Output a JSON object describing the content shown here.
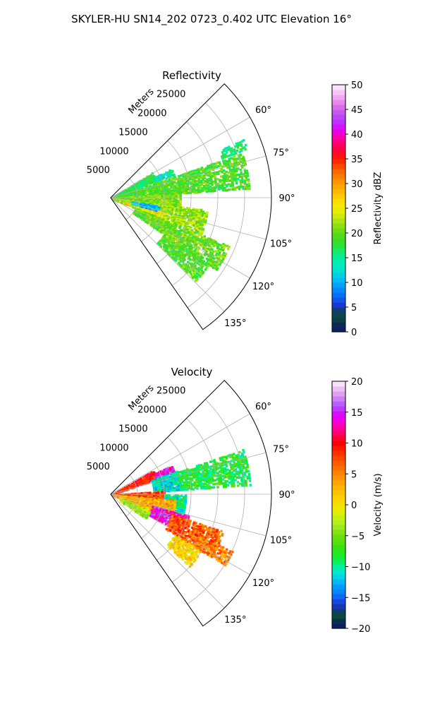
{
  "suptitle": "SKYLER-HU  SN14_202  0723_0.402 UTC Elevation 16°",
  "chart_data": [
    {
      "type": "polar-sector-radar",
      "title": "Reflectivity",
      "radial_axis_label": "Meters",
      "radial_ticks": [
        5000,
        10000,
        15000,
        20000,
        25000
      ],
      "radial_tick_labels": [
        "5000",
        "10000",
        "15000",
        "20000",
        "25000"
      ],
      "rmax": 30000,
      "theta_range_deg": [
        45,
        145
      ],
      "theta_direction": "clockwise-from-north",
      "theta_ticks": [
        60,
        75,
        90,
        105,
        120,
        135
      ],
      "theta_tick_labels": [
        "60°",
        "75°",
        "90°",
        "105°",
        "120°",
        "135°"
      ],
      "grid": true,
      "colorbar": {
        "label": "Reflectivity dBZ",
        "min": 0,
        "max": 50,
        "ticks": [
          0,
          5,
          10,
          15,
          20,
          25,
          30,
          35,
          40,
          45,
          50
        ],
        "tick_labels": [
          "0",
          "5",
          "10",
          "15",
          "20",
          "25",
          "30",
          "35",
          "40",
          "45",
          "50"
        ],
        "colormap": "HomeyerRainbow"
      },
      "echo_regions": [
        {
          "az": [
            58,
            68
          ],
          "r": [
            200,
            9000
          ],
          "value": 17
        },
        {
          "az": [
            64,
            70
          ],
          "r": [
            9000,
            12500
          ],
          "value": 14
        },
        {
          "az": [
            71,
            86
          ],
          "r": [
            300,
            26000
          ],
          "value": 19
        },
        {
          "az": [
            86,
            97
          ],
          "r": [
            300,
            13000
          ],
          "value": 21
        },
        {
          "az": [
            97,
            112
          ],
          "r": [
            500,
            18000
          ],
          "value": 22
        },
        {
          "az": [
            104,
            110
          ],
          "r": [
            3000,
            10000
          ],
          "value": 26
        },
        {
          "az": [
            112,
            124
          ],
          "r": [
            5000,
            24000
          ],
          "value": 20
        },
        {
          "az": [
            124,
            134
          ],
          "r": [
            12000,
            22000
          ],
          "value": 19
        },
        {
          "az": [
            99,
            105
          ],
          "r": [
            4000,
            9000
          ],
          "value": 11
        },
        {
          "az": [
            66,
            70
          ],
          "r": [
            22000,
            27000
          ],
          "value": 16
        }
      ]
    },
    {
      "type": "polar-sector-radar",
      "title": "Velocity",
      "radial_axis_label": "Meters",
      "radial_ticks": [
        5000,
        10000,
        15000,
        20000,
        25000
      ],
      "radial_tick_labels": [
        "5000",
        "10000",
        "15000",
        "20000",
        "25000"
      ],
      "rmax": 30000,
      "theta_range_deg": [
        45,
        145
      ],
      "theta_direction": "clockwise-from-north",
      "theta_ticks": [
        60,
        75,
        90,
        105,
        120,
        135
      ],
      "theta_tick_labels": [
        "60°",
        "75°",
        "90°",
        "105°",
        "120°",
        "135°"
      ],
      "grid": true,
      "colorbar": {
        "label": "Velocity (m/s)",
        "min": -20,
        "max": 20,
        "ticks": [
          -20,
          -15,
          -10,
          -5,
          0,
          5,
          10,
          15,
          20
        ],
        "tick_labels": [
          "−20",
          "−15",
          "−10",
          "−5",
          "0",
          "5",
          "10",
          "15",
          "20"
        ],
        "colormap": "balanced-velocity"
      },
      "echo_regions": [
        {
          "az": [
            60,
            70
          ],
          "r": [
            200,
            9000
          ],
          "value": 9
        },
        {
          "az": [
            64,
            70
          ],
          "r": [
            9000,
            12500
          ],
          "value": 14
        },
        {
          "az": [
            70,
            86
          ],
          "r": [
            8000,
            13000
          ],
          "value": -11
        },
        {
          "az": [
            71,
            86
          ],
          "r": [
            13000,
            26000
          ],
          "value": -8
        },
        {
          "az": [
            86,
            96
          ],
          "r": [
            300,
            10000
          ],
          "value": 8
        },
        {
          "az": [
            90,
            105
          ],
          "r": [
            10000,
            14000
          ],
          "value": -10
        },
        {
          "az": [
            95,
            110
          ],
          "r": [
            500,
            12000
          ],
          "value": 3
        },
        {
          "az": [
            105,
            118
          ],
          "r": [
            8000,
            15000
          ],
          "value": 14
        },
        {
          "az": [
            108,
            122
          ],
          "r": [
            12000,
            22000
          ],
          "value": 7
        },
        {
          "az": [
            112,
            124
          ],
          "r": [
            2000,
            8000
          ],
          "value": -3
        },
        {
          "az": [
            122,
            132
          ],
          "r": [
            14000,
            20000
          ],
          "value": 1
        },
        {
          "az": [
            115,
            122
          ],
          "r": [
            18000,
            25000
          ],
          "value": 5
        }
      ]
    }
  ]
}
